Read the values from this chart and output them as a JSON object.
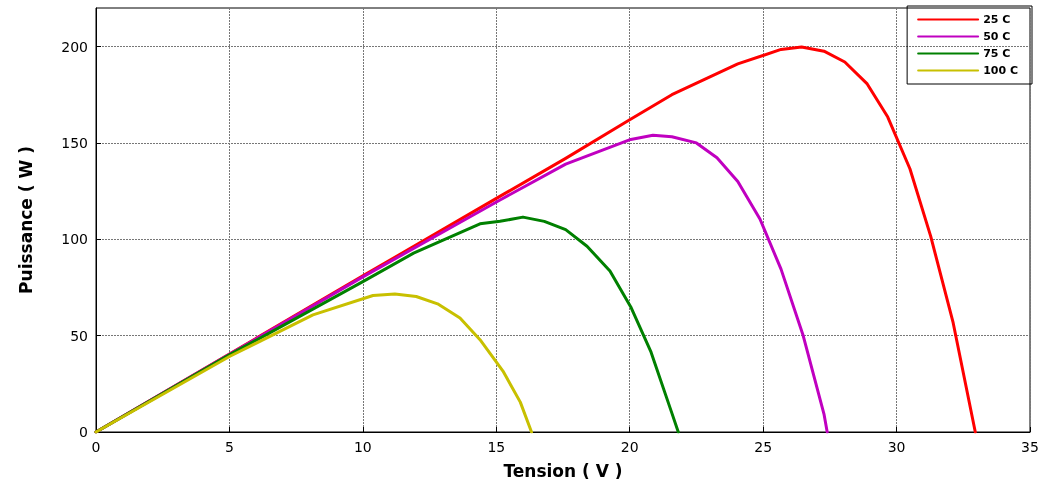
{
  "chart_data": {
    "type": "line",
    "xlabel": "Tension ( V )",
    "ylabel": "Puissance ( W )",
    "xlim": [
      0,
      35
    ],
    "ylim": [
      0,
      220
    ],
    "xticks": [
      0,
      5,
      10,
      15,
      20,
      25,
      30,
      35
    ],
    "yticks": [
      0,
      50,
      100,
      150,
      200
    ],
    "grid": true,
    "legend": "top right",
    "marker": "none",
    "line_style": "solid",
    "series": [
      {
        "name": "25 C",
        "color": "#ff0000",
        "x": [
          0,
          5,
          10,
          15.1,
          17.6,
          20,
          21.58,
          24.05,
          25.67,
          26.44,
          27.28,
          28.06,
          28.9,
          29.67,
          30.5,
          31.28,
          32.12,
          32.95
        ],
        "values": [
          0,
          40.5,
          81,
          122,
          142,
          162,
          175,
          191,
          198.5,
          199.8,
          197.6,
          192,
          180.6,
          163.4,
          136.6,
          101.5,
          56.7,
          0
        ]
      },
      {
        "name": "50 C",
        "color": "#c000c0",
        "x": [
          0,
          5,
          10,
          15.14,
          17.6,
          20.04,
          20.87,
          21.58,
          22.5,
          23.27,
          24.05,
          24.88,
          25.67,
          26.49,
          27.28,
          27.4
        ],
        "values": [
          0,
          40.3,
          80.5,
          120.4,
          139,
          151.8,
          154,
          153.2,
          150,
          142.3,
          130,
          110.5,
          84.5,
          50.5,
          9.3,
          0
        ]
      },
      {
        "name": "75 C",
        "color": "#008000",
        "x": [
          0,
          5,
          10,
          11.9,
          14.39,
          15.14,
          16,
          16.8,
          17.6,
          18.4,
          19.26,
          20.04,
          20.8,
          21.58,
          21.82
        ],
        "values": [
          0,
          40,
          78,
          92.8,
          108,
          109.3,
          111.5,
          109.3,
          105,
          96.4,
          83.5,
          64.9,
          41.4,
          9.8,
          0
        ]
      },
      {
        "name": "100 C",
        "color": "#c8c000",
        "x": [
          0,
          5.02,
          8.13,
          10.38,
          11.2,
          12,
          12.8,
          13.64,
          14.39,
          15.25,
          15.9,
          16.32
        ],
        "values": [
          0,
          39.3,
          60.8,
          70.8,
          71.6,
          70.3,
          66.5,
          59.2,
          47.9,
          31.6,
          15.5,
          0
        ]
      }
    ]
  }
}
